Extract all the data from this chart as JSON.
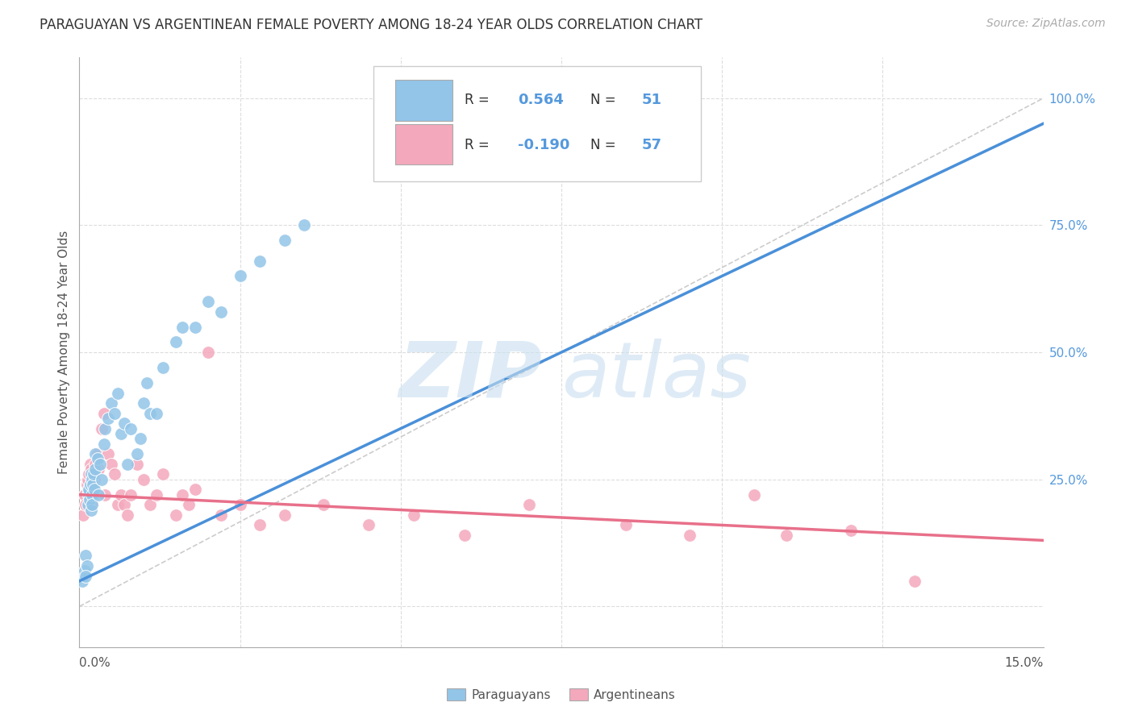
{
  "title": "PARAGUAYAN VS ARGENTINEAN FEMALE POVERTY AMONG 18-24 YEAR OLDS CORRELATION CHART",
  "source": "Source: ZipAtlas.com",
  "ylabel": "Female Poverty Among 18-24 Year Olds",
  "xlim": [
    0.0,
    15.0
  ],
  "ylim": [
    -8.0,
    108.0
  ],
  "blue_color": "#92C5E8",
  "pink_color": "#F4A8BC",
  "blue_line_color": "#4A90D9",
  "pink_line_color": "#E8708A",
  "ref_line_color": "#CCCCCC",
  "grid_color": "#DDDDDD",
  "R_blue": 0.564,
  "N_blue": 51,
  "R_pink": -0.19,
  "N_pink": 57,
  "blue_x": [
    0.05,
    0.08,
    0.1,
    0.12,
    0.13,
    0.14,
    0.15,
    0.15,
    0.16,
    0.17,
    0.18,
    0.18,
    0.19,
    0.2,
    0.2,
    0.21,
    0.22,
    0.23,
    0.25,
    0.25,
    0.28,
    0.3,
    0.32,
    0.35,
    0.38,
    0.4,
    0.45,
    0.5,
    0.55,
    0.6,
    0.65,
    0.7,
    0.75,
    0.8,
    0.9,
    0.95,
    1.0,
    1.05,
    1.1,
    1.2,
    1.3,
    1.5,
    1.6,
    1.8,
    2.0,
    2.2,
    2.5,
    2.8,
    3.2,
    3.5,
    0.1
  ],
  "blue_y": [
    5.0,
    7.0,
    10.0,
    8.0,
    20.0,
    22.0,
    22.5,
    23.0,
    21.0,
    24.0,
    19.0,
    26.0,
    22.0,
    20.0,
    25.0,
    24.0,
    26.0,
    23.0,
    27.0,
    30.0,
    29.0,
    22.0,
    28.0,
    25.0,
    32.0,
    35.0,
    37.0,
    40.0,
    38.0,
    42.0,
    34.0,
    36.0,
    28.0,
    35.0,
    30.0,
    33.0,
    40.0,
    44.0,
    38.0,
    38.0,
    47.0,
    52.0,
    55.0,
    55.0,
    60.0,
    58.0,
    65.0,
    68.0,
    72.0,
    75.0,
    6.0
  ],
  "pink_x": [
    0.06,
    0.08,
    0.1,
    0.12,
    0.13,
    0.14,
    0.15,
    0.15,
    0.16,
    0.17,
    0.18,
    0.18,
    0.19,
    0.2,
    0.2,
    0.21,
    0.22,
    0.23,
    0.25,
    0.28,
    0.3,
    0.35,
    0.38,
    0.4,
    0.45,
    0.5,
    0.55,
    0.6,
    0.65,
    0.7,
    0.75,
    0.8,
    0.9,
    1.0,
    1.1,
    1.2,
    1.3,
    1.5,
    1.6,
    1.7,
    1.8,
    2.0,
    2.2,
    2.5,
    2.8,
    3.2,
    3.8,
    4.5,
    5.2,
    6.0,
    7.0,
    8.5,
    9.5,
    10.5,
    11.0,
    12.0,
    13.0
  ],
  "pink_y": [
    18.0,
    22.0,
    20.0,
    24.0,
    25.0,
    22.0,
    23.0,
    26.0,
    22.0,
    28.0,
    24.0,
    27.0,
    25.0,
    20.0,
    23.0,
    26.0,
    22.0,
    25.0,
    28.0,
    30.0,
    27.0,
    35.0,
    38.0,
    22.0,
    30.0,
    28.0,
    26.0,
    20.0,
    22.0,
    20.0,
    18.0,
    22.0,
    28.0,
    25.0,
    20.0,
    22.0,
    26.0,
    18.0,
    22.0,
    20.0,
    23.0,
    50.0,
    18.0,
    20.0,
    16.0,
    18.0,
    20.0,
    16.0,
    18.0,
    14.0,
    20.0,
    16.0,
    14.0,
    22.0,
    14.0,
    15.0,
    5.0
  ],
  "blue_line_x": [
    0.0,
    15.0
  ],
  "blue_line_y": [
    5.0,
    95.0
  ],
  "pink_line_x": [
    0.0,
    15.0
  ],
  "pink_line_y": [
    22.0,
    13.0
  ],
  "ref_line_x": [
    0.0,
    15.0
  ],
  "ref_line_y": [
    0.0,
    100.0
  ],
  "yticks": [
    0,
    25,
    50,
    75,
    100
  ],
  "yticklabels": [
    "",
    "25.0%",
    "50.0%",
    "75.0%",
    "100.0%"
  ],
  "right_tick_color": "#5599DD",
  "title_fontsize": 12,
  "source_fontsize": 10,
  "ylabel_fontsize": 11,
  "ytick_fontsize": 11,
  "legend_fontsize": 13
}
